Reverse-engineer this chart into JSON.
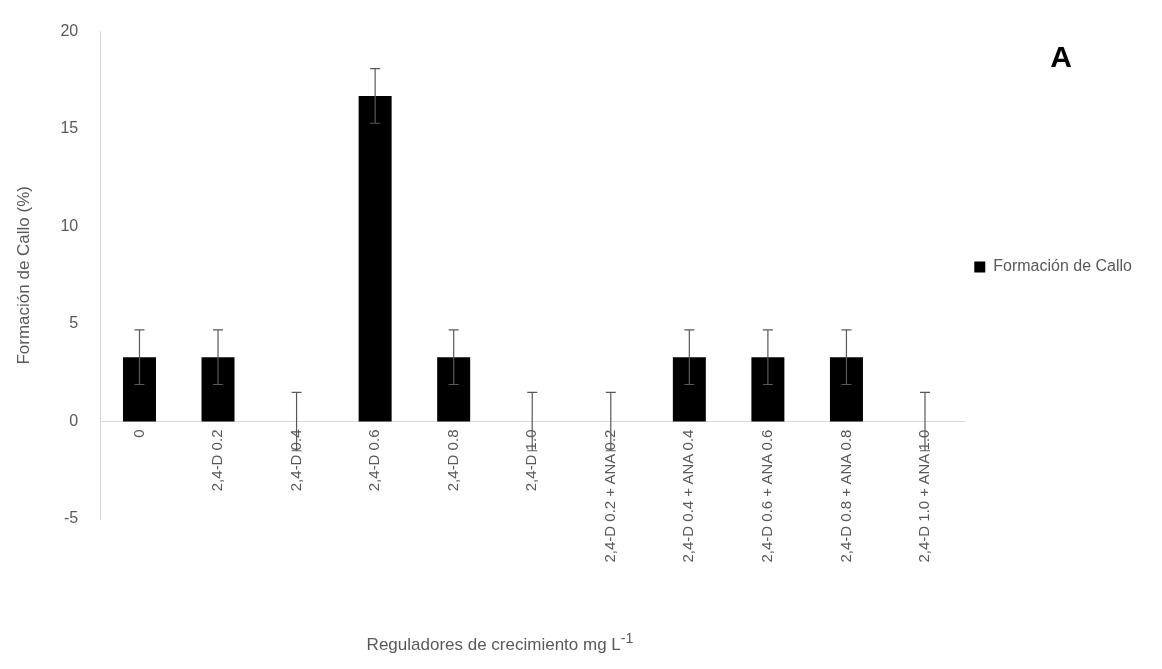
{
  "chart_data": {
    "type": "bar",
    "xlabel": "Reguladores de crecimiento mg L$^{-1}$",
    "ylabel": "Formación de Callo (%)",
    "categories": [
      "0",
      "2,4-D 0.2",
      "2,4-D 0.4",
      "2,4-D 0.6",
      "2,4-D 0.8",
      "2,4-D 1.0",
      "2,4-D 0.2 + ANA 0.2",
      "2,4-D 0.4 + ANA 0.4",
      "2,4-D 0.6 + ANA 0.6",
      "2,4-D 0.8 + ANA 0.8",
      "2,4-D 1.0 + ANA 1.0"
    ],
    "series": [
      {
        "name": "Formación de Callo",
        "color": "#000000",
        "values": [
          3.3,
          3.3,
          0,
          16.7,
          3.3,
          0,
          0,
          3.3,
          3.3,
          3.3,
          0
        ],
        "errors": [
          1.4,
          1.4,
          1.5,
          1.4,
          1.4,
          1.5,
          1.5,
          1.4,
          1.4,
          1.4,
          1.5
        ]
      }
    ],
    "ylim": [
      -5,
      20
    ],
    "yticks": [
      -5,
      0,
      5,
      10,
      15,
      20
    ],
    "grid": false,
    "legend": "right",
    "annotations": [
      "A"
    ]
  }
}
